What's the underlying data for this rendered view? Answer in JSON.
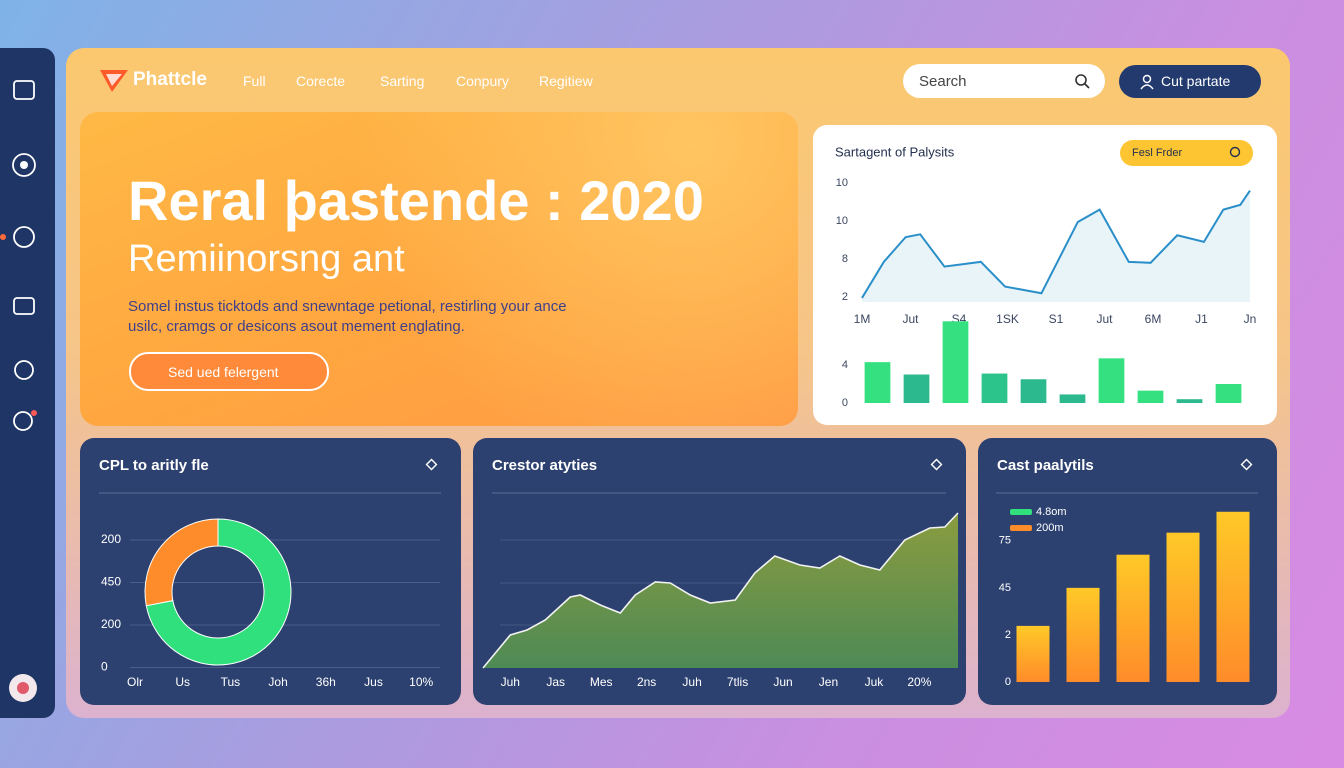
{
  "nav": {
    "brand": "Phattcle",
    "links": [
      "Full",
      "Corecte",
      "Sarting",
      "Conpury",
      "Regitiew"
    ],
    "search_placeholder": "Search",
    "button": "Cut partate"
  },
  "hero": {
    "title": "Reral þastende : 2020",
    "subtitle": "Remiinorsng ant",
    "body": "Somel instus ticktods and snewntage petional, restirling your ance usilc, cramgs or desicons asout mement englating.",
    "button": "Sed ued felergent"
  },
  "chart_data": [
    {
      "type": "line",
      "title": "Sartagent of Palysits",
      "button": "Fesl Frder",
      "color": "#2a8fc9",
      "x": [
        0,
        0.9,
        1.8,
        2.4,
        3.4,
        4.9,
        5.9,
        7.4,
        8.9,
        9.8,
        11.0,
        11.9,
        13.0,
        14.1,
        14.9,
        15.6,
        16
      ],
      "values": [
        1.9,
        5.7,
        8.3,
        8.6,
        5.2,
        5.7,
        3.1,
        2.4,
        9.9,
        11.2,
        5.7,
        5.6,
        8.5,
        7.8,
        11.2,
        11.7,
        13.2
      ],
      "xlim": [
        0,
        16
      ],
      "xticks": [
        {
          "value": 0,
          "label": "1M"
        },
        {
          "value": 2,
          "label": "Jut"
        },
        {
          "value": 4,
          "label": "S4"
        },
        {
          "value": 6,
          "label": "1SK"
        },
        {
          "value": 8,
          "label": "S1"
        },
        {
          "value": 10,
          "label": "Jut"
        },
        {
          "value": 12,
          "label": "6M"
        },
        {
          "value": 14,
          "label": "J1"
        },
        {
          "value": 16,
          "label": "Jn"
        }
      ],
      "ylim": [
        2,
        14
      ],
      "yticks": [
        2,
        {
          "value": 6,
          "label": "8"
        },
        10,
        {
          "value": 14,
          "label": "10"
        }
      ]
    },
    {
      "type": "bar",
      "categories": [
        null,
        null,
        null,
        null,
        null,
        null,
        null,
        null,
        null,
        null
      ],
      "values": [
        4.3,
        3.0,
        8.6,
        3.1,
        2.5,
        0.9,
        4.7,
        1.3,
        0.4,
        2.0
      ],
      "colors": [
        "#34e07f",
        "#2cb98d",
        "#34e07f",
        "#2cc48a",
        "#2cb98d",
        "#2cb98d",
        "#34e07f",
        "#34e07f",
        "#2cb98d",
        "#34e07f"
      ],
      "ylim": [
        0,
        9
      ],
      "yticks": [
        0,
        4
      ]
    },
    {
      "type": "pie",
      "title": "CPL to aritly fle",
      "donut": true,
      "values": [
        72,
        28
      ],
      "colors": [
        "#2fe07c",
        "#ff8c2a"
      ],
      "y_labels": [
        "200",
        "450",
        "200",
        "0"
      ],
      "x_labels": [
        "Olr",
        "Us",
        "Tus",
        "Joh",
        "36h",
        "Jus",
        "10%"
      ]
    },
    {
      "type": "area",
      "title": "Crestor atyties",
      "color": "#7a9a45",
      "x": [
        -0.6,
        0,
        0.37,
        0.77,
        1.32,
        1.54,
        1.98,
        2.42,
        2.75,
        3.19,
        3.52,
        3.96,
        4.4,
        4.95,
        5.38,
        5.82,
        6.37,
        6.81,
        7.25,
        7.69,
        8.13,
        8.68,
        9.23,
        9.56,
        9.85
      ],
      "values": [
        0,
        33,
        38,
        48,
        71,
        73,
        63,
        55,
        73,
        86,
        85,
        73,
        65,
        68,
        95,
        112,
        103,
        100,
        112,
        103,
        98,
        128,
        140,
        141,
        155
      ],
      "xlim": [
        -0.6,
        9.85
      ],
      "ylim": [
        0,
        160
      ],
      "xticks": [
        {
          "value": 0,
          "label": "Juh"
        },
        {
          "value": 1,
          "label": "Jas"
        },
        {
          "value": 2,
          "label": "Mes"
        },
        {
          "value": 3,
          "label": "2ns"
        },
        {
          "value": 4,
          "label": "Juh"
        },
        {
          "value": 5,
          "label": "7tlis"
        },
        {
          "value": 6,
          "label": "Jun"
        },
        {
          "value": 7,
          "label": "Jen"
        },
        {
          "value": 8,
          "label": "Juk"
        },
        {
          "value": 9,
          "label": "20%"
        }
      ]
    },
    {
      "type": "bar",
      "title": "Cast paalytils",
      "categories": [
        null,
        null,
        null,
        null,
        null
      ],
      "values": [
        29.8,
        50,
        67.6,
        79.3,
        90.4
      ],
      "gradient": [
        "#ffc928",
        "#ff8c2a"
      ],
      "legend": [
        {
          "label": "4.8om",
          "color": "#2fe07c"
        },
        {
          "label": "200m",
          "color": "#ff8c2a"
        }
      ],
      "ylim": [
        0,
        94
      ],
      "yticks": [
        0,
        {
          "value": 25,
          "label": "2"
        },
        {
          "value": 50,
          "label": "45"
        },
        75
      ]
    }
  ]
}
